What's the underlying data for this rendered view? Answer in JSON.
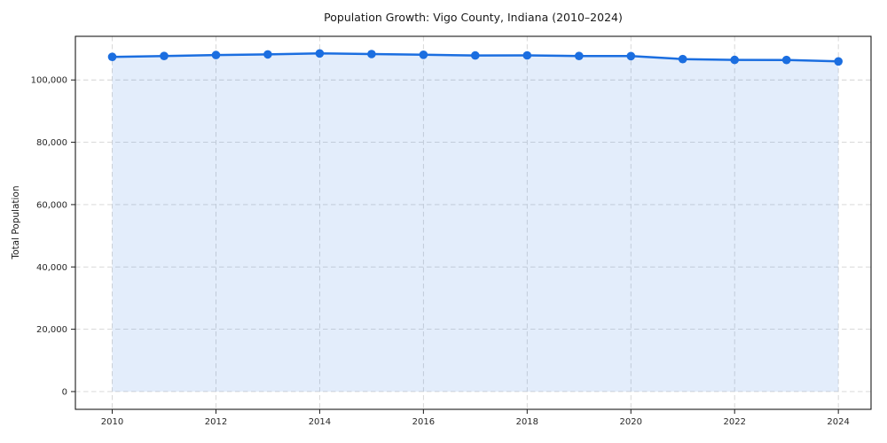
{
  "chart_data": {
    "type": "line",
    "title": "Population Growth: Vigo County, Indiana (2010–2024)",
    "xlabel": "",
    "ylabel": "Total Population",
    "x": [
      2010,
      2011,
      2012,
      2013,
      2014,
      2015,
      2016,
      2017,
      2018,
      2019,
      2020,
      2021,
      2022,
      2023,
      2024
    ],
    "values": [
      107400,
      107700,
      108000,
      108200,
      108500,
      108300,
      108100,
      107850,
      107900,
      107700,
      107650,
      106700,
      106450,
      106400,
      105950
    ],
    "x_ticks": {
      "values": [
        2010,
        2012,
        2014,
        2016,
        2018,
        2020,
        2022,
        2024
      ],
      "labels": [
        "2010",
        "2012",
        "2014",
        "2016",
        "2018",
        "2020",
        "2022",
        "2024"
      ]
    },
    "y_ticks": {
      "values": [
        0,
        20000,
        40000,
        60000,
        80000,
        100000
      ],
      "labels": [
        "0",
        "20,000",
        "40,000",
        "60,000",
        "80,000",
        "100,000"
      ]
    },
    "xlim": [
      2009.29,
      2024.63
    ],
    "ylim": [
      -5700,
      114000
    ],
    "grid": true,
    "grid_style": "dashed",
    "fill_to_zero": true,
    "marker": "circle",
    "colors": {
      "line": "#1b6ee0",
      "marker": "#1b6ee0",
      "fill": "#1b6ee0",
      "fill_opacity": 0.12,
      "grid": "#d4d4d4",
      "axis": "#1a1a1a",
      "tick_text": "#262626",
      "background": "#ffffff"
    }
  }
}
